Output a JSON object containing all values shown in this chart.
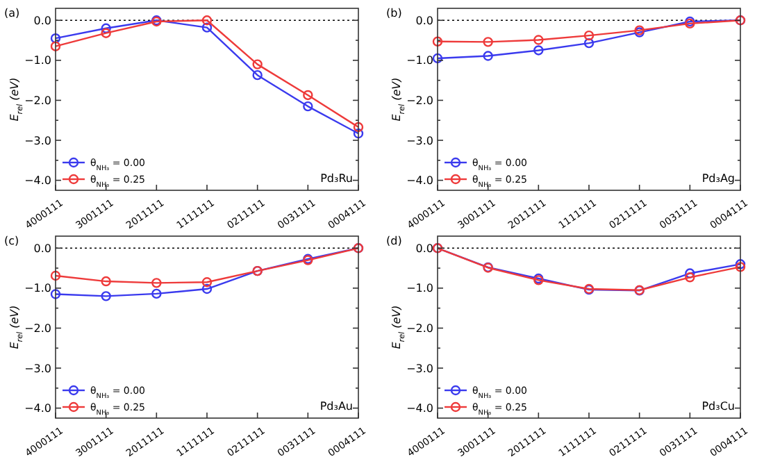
{
  "chart_data": [
    {
      "type": "line",
      "title": "(a)",
      "ylabel": "E$_{rel}$ (eV)",
      "categories": [
        "4000111",
        "3001111",
        "2011111",
        "1111111",
        "0211111",
        "0031111",
        "0004111"
      ],
      "series": [
        {
          "name": "θ$_{NH₃}$ = 0.00",
          "color": "#3a3aee",
          "values": [
            -0.45,
            -0.2,
            0.0,
            -0.18,
            -1.37,
            -2.15,
            -2.83
          ]
        },
        {
          "name": "θ$_{NH₃}$ = 0.25",
          "color": "#ee3a3a",
          "values": [
            -0.65,
            -0.32,
            -0.03,
            0.0,
            -1.1,
            -1.87,
            -2.67
          ]
        }
      ],
      "ylim": [
        -4.25,
        0.3
      ],
      "yticks": [
        {
          "value": -4,
          "label": "−4.0"
        },
        {
          "value": -3.5,
          "label": null
        },
        {
          "value": -3,
          "label": "−3.0"
        },
        {
          "value": -2.5,
          "label": null
        },
        {
          "value": -2,
          "label": "−2.0"
        },
        {
          "value": -1.5,
          "label": null
        },
        {
          "value": -1,
          "label": "−1.0"
        },
        {
          "value": -0.5,
          "label": null
        },
        {
          "value": 0,
          "label": "0.0"
        }
      ],
      "ref_lines": [
        {
          "axis": "y",
          "value": 0,
          "color": "#000000",
          "line_style": "dotted"
        }
      ],
      "legend": "bottom left",
      "marker": "circle",
      "annotations": [
        "Pd₃Ru"
      ]
    },
    {
      "type": "line",
      "title": "(b)",
      "ylabel": "E$_{rel}$ (eV)",
      "categories": [
        "4000111",
        "3001111",
        "2011111",
        "1111111",
        "0211111",
        "0031111",
        "0004111"
      ],
      "series": [
        {
          "name": "θ$_{NH₃}$ = 0.00",
          "color": "#3a3aee",
          "values": [
            -0.95,
            -0.89,
            -0.75,
            -0.57,
            -0.3,
            -0.03,
            0.0
          ]
        },
        {
          "name": "θ$_{NH₃}$ = 0.25",
          "color": "#ee3a3a",
          "values": [
            -0.53,
            -0.54,
            -0.49,
            -0.38,
            -0.25,
            -0.08,
            0.0
          ]
        }
      ],
      "ylim": [
        -4.25,
        0.3
      ],
      "yticks": [
        {
          "value": -4,
          "label": "−4.0"
        },
        {
          "value": -3.5,
          "label": null
        },
        {
          "value": -3,
          "label": "−3.0"
        },
        {
          "value": -2.5,
          "label": null
        },
        {
          "value": -2,
          "label": "−2.0"
        },
        {
          "value": -1.5,
          "label": null
        },
        {
          "value": -1,
          "label": "−1.0"
        },
        {
          "value": -0.5,
          "label": null
        },
        {
          "value": 0,
          "label": "0.0"
        }
      ],
      "ref_lines": [
        {
          "axis": "y",
          "value": 0,
          "color": "#000000",
          "line_style": "dotted"
        }
      ],
      "legend": "bottom left",
      "marker": "circle",
      "annotations": [
        "Pd₃Ag"
      ]
    },
    {
      "type": "line",
      "title": "(c)",
      "ylabel": "E$_{rel}$ (eV)",
      "categories": [
        "4000111",
        "3001111",
        "2011111",
        "1111111",
        "0211111",
        "0031111",
        "0004111"
      ],
      "series": [
        {
          "name": "θ$_{NH₃}$ = 0.00",
          "color": "#3a3aee",
          "values": [
            -1.15,
            -1.2,
            -1.14,
            -1.02,
            -0.57,
            -0.27,
            0.0
          ]
        },
        {
          "name": "θ$_{NH₃}$ = 0.25",
          "color": "#ee3a3a",
          "values": [
            -0.69,
            -0.83,
            -0.87,
            -0.85,
            -0.57,
            -0.3,
            0.0
          ]
        }
      ],
      "ylim": [
        -4.25,
        0.3
      ],
      "yticks": [
        {
          "value": -4,
          "label": "−4.0"
        },
        {
          "value": -3.5,
          "label": null
        },
        {
          "value": -3,
          "label": "−3.0"
        },
        {
          "value": -2.5,
          "label": null
        },
        {
          "value": -2,
          "label": "−2.0"
        },
        {
          "value": -1.5,
          "label": null
        },
        {
          "value": -1,
          "label": "−1.0"
        },
        {
          "value": -0.5,
          "label": null
        },
        {
          "value": 0,
          "label": "0.0"
        }
      ],
      "ref_lines": [
        {
          "axis": "y",
          "value": 0,
          "color": "#000000",
          "line_style": "dotted"
        }
      ],
      "legend": "bottom left",
      "marker": "circle",
      "annotations": [
        "Pd₃Au"
      ]
    },
    {
      "type": "line",
      "title": "(d)",
      "ylabel": "E$_{rel}$ (eV)",
      "categories": [
        "4000111",
        "3001111",
        "2011111",
        "1111111",
        "0211111",
        "0031111",
        "0004111"
      ],
      "series": [
        {
          "name": "θ$_{NH₃}$ = 0.00",
          "color": "#3a3aee",
          "values": [
            0.0,
            -0.48,
            -0.76,
            -1.04,
            -1.06,
            -0.63,
            -0.4
          ]
        },
        {
          "name": "θ$_{NH₃}$ = 0.25",
          "color": "#ee3a3a",
          "values": [
            0.0,
            -0.49,
            -0.8,
            -1.02,
            -1.05,
            -0.73,
            -0.47
          ]
        }
      ],
      "ylim": [
        -4.25,
        0.3
      ],
      "yticks": [
        {
          "value": -4,
          "label": "−4.0"
        },
        {
          "value": -3.5,
          "label": null
        },
        {
          "value": -3,
          "label": "−3.0"
        },
        {
          "value": -2.5,
          "label": null
        },
        {
          "value": -2,
          "label": "−2.0"
        },
        {
          "value": -1.5,
          "label": null
        },
        {
          "value": -1,
          "label": "−1.0"
        },
        {
          "value": -0.5,
          "label": null
        },
        {
          "value": 0,
          "label": "0.0"
        }
      ],
      "ref_lines": [
        {
          "axis": "y",
          "value": 0,
          "color": "#000000",
          "line_style": "dotted"
        }
      ],
      "legend": "bottom left",
      "marker": "circle",
      "annotations": [
        "Pd₃Cu"
      ]
    }
  ]
}
